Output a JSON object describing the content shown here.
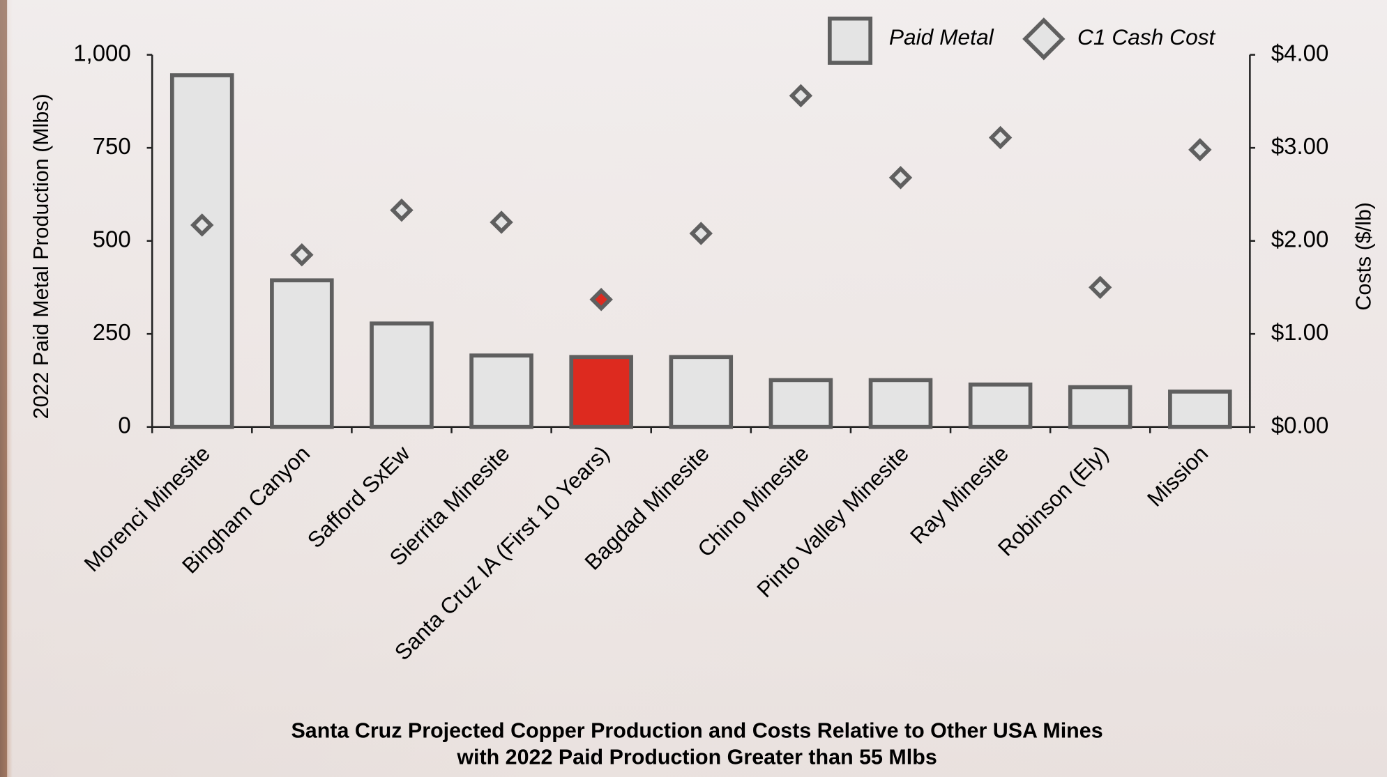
{
  "chart_data": {
    "type": "bar",
    "title": [
      "Santa Cruz Projected Copper Production and Costs Relative to Other USA Mines",
      "with 2022 Paid Production Greater than 55 Mlbs"
    ],
    "y_label": "2022 Paid Metal Production (Mlbs)",
    "y2_label": "Costs ($/lb)",
    "categories": [
      "Morenci Minesite",
      "Bingham Canyon",
      "Safford SxEw",
      "Sierrita Minesite",
      "Santa Cruz IA (First 10 Years)",
      "Bagdad Minesite",
      "Chino Minesite",
      "Pinto Valley Minesite",
      "Ray Minesite",
      "Robinson (Ely)",
      "Mission"
    ],
    "series": [
      {
        "name": "Paid Metal",
        "type": "bar",
        "color": "#e4e4e4",
        "bar_colors": [
          "#e4e4e4",
          "#e4e4e4",
          "#e4e4e4",
          "#e4e4e4",
          "#dd2a1f",
          "#e4e4e4",
          "#e4e4e4",
          "#e4e4e4",
          "#e4e4e4",
          "#e4e4e4",
          "#e4e4e4"
        ],
        "values": [
          945,
          394,
          278,
          192,
          188,
          188,
          126,
          126,
          114,
          107,
          95
        ]
      },
      {
        "name": "C1 Cash Cost",
        "type": "scatter",
        "axis": "y2",
        "color": "#e4e4e4",
        "marker_fill_colors": [
          "#e4e4e4",
          "#e4e4e4",
          "#e4e4e4",
          "#e4e4e4",
          "#dd2a1f",
          "#e4e4e4",
          "#e4e4e4",
          "#e4e4e4",
          "#e4e4e4",
          "#e4e4e4",
          "#e4e4e4"
        ],
        "values": [
          2.17,
          1.85,
          2.33,
          2.2,
          1.37,
          2.08,
          3.56,
          2.68,
          3.11,
          1.5,
          2.98
        ]
      }
    ],
    "edge_color": "#5f5f5f",
    "ylim": [
      0,
      1000
    ],
    "yticks": [
      0,
      250,
      500,
      750,
      {
        "value": 1000,
        "label": "1,000"
      }
    ],
    "y2lim": [
      0,
      4
    ],
    "y2ticks": [
      {
        "value": 0,
        "label": "$0.00"
      },
      {
        "value": 1,
        "label": "$1.00"
      },
      {
        "value": 2,
        "label": "$2.00"
      },
      {
        "value": 3,
        "label": "$3.00"
      },
      {
        "value": 4,
        "label": "$4.00"
      }
    ],
    "grid": false,
    "legend": "top-right"
  }
}
